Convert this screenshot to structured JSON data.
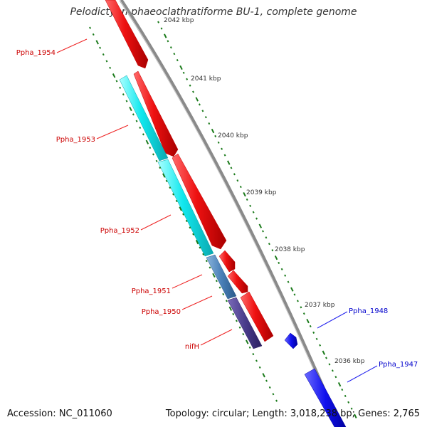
{
  "title": "Pelodictyon phaeoclathratiforme BU-1, complete genome",
  "footer": {
    "accession": "Accession: NC_011060",
    "summary": "Topology: circular; Length: 3,018,238 bp; Genes: 2,765"
  },
  "ticks": [
    "2042 kbp",
    "2041 kbp",
    "2040 kbp",
    "2039 kbp",
    "2038 kbp",
    "2037 kbp",
    "2036 kbp"
  ],
  "gene_labels": [
    "Ppha_1954",
    "Ppha_1953",
    "Ppha_1952",
    "Ppha_1951",
    "Ppha_1950",
    "nifH",
    "Ppha_1948",
    "Ppha_1947"
  ],
  "colors": {
    "forward_strand": "#ee1111",
    "reverse_strand": "#1111ee",
    "cog_cyan": "#11eeee",
    "cog_steel": "#4a80b8",
    "cog_purple": "#4a3d8c",
    "backbone": "#888888",
    "tick_green": "#1a7a1a",
    "label_red": "#cc0000",
    "label_blue": "#0000cc"
  }
}
